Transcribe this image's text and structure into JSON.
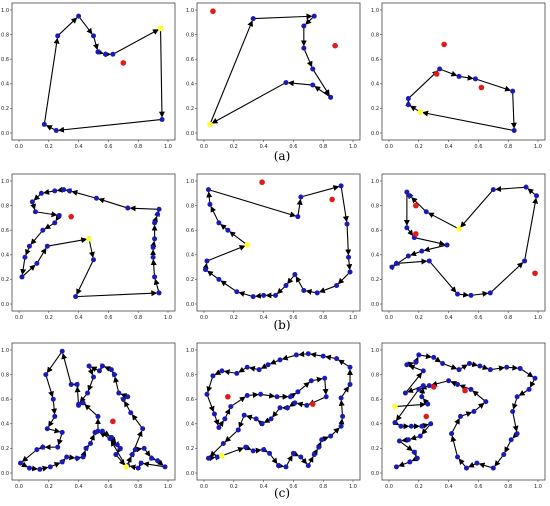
{
  "row_labels": [
    "(a)",
    "(b)",
    "(c)"
  ],
  "colors": {
    "node": "#1a1ab4",
    "start": "#ffff33",
    "outlier": "#e31a1c",
    "edge": "#000000"
  },
  "chart_data": [
    {
      "type": "scatter",
      "row": 0,
      "col": 0,
      "xlim": [
        0,
        1
      ],
      "ylim": [
        0,
        1
      ],
      "xticks": [
        "0.0",
        "0.2",
        "0.4",
        "0.6",
        "0.8",
        "1.0"
      ],
      "yticks": [
        "0.0",
        "0.2",
        "0.4",
        "0.6",
        "0.8",
        "1.0"
      ],
      "route": [
        [
          0.95,
          0.85
        ],
        [
          0.96,
          0.11
        ],
        [
          0.25,
          0.02
        ],
        [
          0.17,
          0.07
        ],
        [
          0.26,
          0.79
        ],
        [
          0.4,
          0.95
        ],
        [
          0.5,
          0.79
        ],
        [
          0.53,
          0.66
        ],
        [
          0.58,
          0.64
        ],
        [
          0.63,
          0.64
        ],
        [
          0.95,
          0.85
        ]
      ],
      "start": [
        0.95,
        0.85
      ],
      "outliers": [
        [
          0.7,
          0.57
        ]
      ]
    },
    {
      "type": "scatter",
      "row": 0,
      "col": 1,
      "xlim": [
        0,
        1
      ],
      "ylim": [
        0,
        1
      ],
      "xticks": [
        "0.0",
        "0.2",
        "0.4",
        "0.6",
        "0.8",
        "1.0"
      ],
      "yticks": [
        "0.0",
        "0.2",
        "0.4",
        "0.6",
        "0.8",
        "1.0"
      ],
      "route": [
        [
          0.04,
          0.07
        ],
        [
          0.33,
          0.93
        ],
        [
          0.74,
          0.95
        ],
        [
          0.67,
          0.87
        ],
        [
          0.67,
          0.69
        ],
        [
          0.73,
          0.52
        ],
        [
          0.85,
          0.29
        ],
        [
          0.73,
          0.39
        ],
        [
          0.55,
          0.41
        ],
        [
          0.04,
          0.07
        ]
      ],
      "start": [
        0.04,
        0.07
      ],
      "outliers": [
        [
          0.06,
          0.99
        ],
        [
          0.88,
          0.71
        ]
      ]
    },
    {
      "type": "scatter",
      "row": 0,
      "col": 2,
      "xlim": [
        0,
        1
      ],
      "ylim": [
        0,
        1
      ],
      "xticks": [
        "0.0",
        "0.2",
        "0.4",
        "0.6",
        "0.8",
        "1.0"
      ],
      "yticks": [
        "0.0",
        "0.2",
        "0.4",
        "0.6",
        "0.8",
        "1.0"
      ],
      "route": [
        [
          0.21,
          0.17
        ],
        [
          0.13,
          0.23
        ],
        [
          0.13,
          0.28
        ],
        [
          0.34,
          0.52
        ],
        [
          0.47,
          0.46
        ],
        [
          0.58,
          0.44
        ],
        [
          0.83,
          0.34
        ],
        [
          0.84,
          0.02
        ],
        [
          0.21,
          0.17
        ]
      ],
      "start": [
        0.21,
        0.17
      ],
      "outliers": [
        [
          0.37,
          0.72
        ],
        [
          0.32,
          0.48
        ],
        [
          0.62,
          0.37
        ]
      ]
    },
    {
      "type": "scatter",
      "row": 1,
      "col": 0,
      "xlim": [
        0,
        1
      ],
      "ylim": [
        0,
        1
      ],
      "xticks": [
        "0.0",
        "0.2",
        "0.4",
        "0.6",
        "0.8",
        "1.0"
      ],
      "yticks": [
        "0.0",
        "0.2",
        "0.4",
        "0.6",
        "0.8",
        "1.0"
      ],
      "route": [
        [
          0.47,
          0.53
        ],
        [
          0.5,
          0.36
        ],
        [
          0.38,
          0.06
        ],
        [
          0.94,
          0.09
        ],
        [
          0.91,
          0.22
        ],
        [
          0.9,
          0.38
        ],
        [
          0.9,
          0.46
        ],
        [
          0.91,
          0.53
        ],
        [
          0.91,
          0.66
        ],
        [
          0.93,
          0.73
        ],
        [
          0.94,
          0.77
        ],
        [
          0.73,
          0.78
        ],
        [
          0.52,
          0.86
        ],
        [
          0.34,
          0.92
        ],
        [
          0.3,
          0.93
        ],
        [
          0.24,
          0.92
        ],
        [
          0.15,
          0.9
        ],
        [
          0.09,
          0.83
        ],
        [
          0.11,
          0.75
        ],
        [
          0.27,
          0.72
        ],
        [
          0.24,
          0.66
        ],
        [
          0.16,
          0.6
        ],
        [
          0.07,
          0.47
        ],
        [
          0.04,
          0.38
        ],
        [
          0.02,
          0.22
        ],
        [
          0.12,
          0.33
        ],
        [
          0.19,
          0.47
        ],
        [
          0.47,
          0.53
        ]
      ],
      "start": [
        0.47,
        0.53
      ],
      "outliers": [
        [
          0.35,
          0.71
        ]
      ]
    },
    {
      "type": "scatter",
      "row": 1,
      "col": 1,
      "xlim": [
        0,
        1
      ],
      "ylim": [
        0,
        1
      ],
      "xticks": [
        "0.0",
        "0.2",
        "0.4",
        "0.6",
        "0.8",
        "1.0"
      ],
      "yticks": [
        "0.0",
        "0.2",
        "0.4",
        "0.6",
        "0.8",
        "1.0"
      ],
      "route": [
        [
          0.29,
          0.48
        ],
        [
          0.16,
          0.6
        ],
        [
          0.1,
          0.66
        ],
        [
          0.04,
          0.81
        ],
        [
          0.03,
          0.93
        ],
        [
          0.63,
          0.71
        ],
        [
          0.65,
          0.87
        ],
        [
          0.92,
          0.96
        ],
        [
          0.96,
          0.65
        ],
        [
          0.97,
          0.38
        ],
        [
          0.98,
          0.26
        ],
        [
          0.89,
          0.15
        ],
        [
          0.76,
          0.09
        ],
        [
          0.67,
          0.11
        ],
        [
          0.61,
          0.24
        ],
        [
          0.55,
          0.15
        ],
        [
          0.48,
          0.07
        ],
        [
          0.4,
          0.07
        ],
        [
          0.33,
          0.06
        ],
        [
          0.22,
          0.1
        ],
        [
          0.1,
          0.2
        ],
        [
          0.01,
          0.28
        ],
        [
          0.02,
          0.35
        ],
        [
          0.29,
          0.48
        ]
      ],
      "start": [
        0.29,
        0.48
      ],
      "outliers": [
        [
          0.39,
          0.99
        ],
        [
          0.86,
          0.85
        ]
      ]
    },
    {
      "type": "scatter",
      "row": 1,
      "col": 2,
      "xlim": [
        0,
        1
      ],
      "ylim": [
        0,
        1
      ],
      "xticks": [
        "0.0",
        "0.2",
        "0.4",
        "0.6",
        "0.8",
        "1.0"
      ],
      "yticks": [
        "0.0",
        "0.2",
        "0.4",
        "0.6",
        "0.8",
        "1.0"
      ],
      "route": [
        [
          0.47,
          0.61
        ],
        [
          0.25,
          0.75
        ],
        [
          0.14,
          0.88
        ],
        [
          0.12,
          0.91
        ],
        [
          0.12,
          0.62
        ],
        [
          0.17,
          0.54
        ],
        [
          0.39,
          0.48
        ],
        [
          0.22,
          0.43
        ],
        [
          0.13,
          0.39
        ],
        [
          0.02,
          0.3
        ],
        [
          0.05,
          0.33
        ],
        [
          0.27,
          0.35
        ],
        [
          0.46,
          0.08
        ],
        [
          0.55,
          0.07
        ],
        [
          0.68,
          0.09
        ],
        [
          0.91,
          0.35
        ],
        [
          0.99,
          0.88
        ],
        [
          0.92,
          0.95
        ],
        [
          0.7,
          0.93
        ],
        [
          0.47,
          0.61
        ]
      ],
      "start": [
        0.47,
        0.61
      ],
      "outliers": [
        [
          0.18,
          0.8
        ],
        [
          0.18,
          0.57
        ],
        [
          0.98,
          0.25
        ]
      ]
    },
    {
      "type": "scatter",
      "row": 2,
      "col": 0,
      "xlim": [
        0,
        1
      ],
      "ylim": [
        0,
        1
      ],
      "xticks": [
        "0.0",
        "0.2",
        "0.4",
        "0.6",
        "0.8",
        "1.0"
      ],
      "yticks": [
        "0.0",
        "0.2",
        "0.4",
        "0.6",
        "0.8",
        "1.0"
      ],
      "route": [
        [
          0.72,
          0.05
        ],
        [
          0.61,
          0.28
        ],
        [
          0.53,
          0.34
        ],
        [
          0.53,
          0.46
        ],
        [
          0.43,
          0.57
        ],
        [
          0.4,
          0.55
        ],
        [
          0.39,
          0.72
        ],
        [
          0.35,
          0.72
        ],
        [
          0.29,
          0.99
        ],
        [
          0.18,
          0.8
        ],
        [
          0.23,
          0.6
        ],
        [
          0.24,
          0.46
        ],
        [
          0.19,
          0.36
        ],
        [
          0.29,
          0.33
        ],
        [
          0.26,
          0.21
        ],
        [
          0.16,
          0.21
        ],
        [
          0.12,
          0.19
        ],
        [
          0.01,
          0.08
        ],
        [
          0.07,
          0.04
        ],
        [
          0.14,
          0.03
        ],
        [
          0.21,
          0.05
        ],
        [
          0.29,
          0.09
        ],
        [
          0.32,
          0.13
        ],
        [
          0.39,
          0.12
        ],
        [
          0.43,
          0.13
        ],
        [
          0.45,
          0.2
        ],
        [
          0.48,
          0.24
        ],
        [
          0.51,
          0.33
        ],
        [
          0.56,
          0.34
        ],
        [
          0.62,
          0.29
        ],
        [
          0.66,
          0.23
        ],
        [
          0.68,
          0.2
        ],
        [
          0.65,
          0.15
        ],
        [
          0.72,
          0.05
        ],
        [
          0.76,
          0.15
        ],
        [
          0.78,
          0.19
        ],
        [
          0.84,
          0.2
        ],
        [
          0.89,
          0.12
        ],
        [
          0.93,
          0.1
        ],
        [
          0.98,
          0.05
        ],
        [
          0.82,
          0.08
        ],
        [
          0.8,
          0.04
        ],
        [
          0.73,
          0.06
        ],
        [
          0.83,
          0.36
        ],
        [
          0.75,
          0.49
        ],
        [
          0.7,
          0.6
        ],
        [
          0.73,
          0.62
        ],
        [
          0.67,
          0.65
        ],
        [
          0.64,
          0.8
        ],
        [
          0.62,
          0.84
        ],
        [
          0.56,
          0.87
        ],
        [
          0.54,
          0.83
        ],
        [
          0.47,
          0.87
        ],
        [
          0.5,
          0.78
        ],
        [
          0.46,
          0.65
        ],
        [
          0.4,
          0.56
        ]
      ],
      "start": [
        0.72,
        0.05
      ],
      "outliers": [
        [
          0.63,
          0.42
        ]
      ]
    },
    {
      "type": "scatter",
      "row": 2,
      "col": 1,
      "xlim": [
        0,
        1
      ],
      "ylim": [
        0,
        1
      ],
      "xticks": [
        "0.0",
        "0.2",
        "0.4",
        "0.6",
        "0.8",
        "1.0"
      ],
      "yticks": [
        "0.0",
        "0.2",
        "0.4",
        "0.6",
        "0.8",
        "1.0"
      ],
      "route": [
        [
          0.12,
          0.14
        ],
        [
          0.28,
          0.21
        ],
        [
          0.33,
          0.18
        ],
        [
          0.4,
          0.19
        ],
        [
          0.44,
          0.16
        ],
        [
          0.5,
          0.06
        ],
        [
          0.55,
          0.05
        ],
        [
          0.6,
          0.16
        ],
        [
          0.65,
          0.13
        ],
        [
          0.7,
          0.06
        ],
        [
          0.74,
          0.15
        ],
        [
          0.77,
          0.21
        ],
        [
          0.79,
          0.27
        ],
        [
          0.85,
          0.3
        ],
        [
          0.92,
          0.38
        ],
        [
          0.93,
          0.46
        ],
        [
          0.92,
          0.61
        ],
        [
          0.98,
          0.72
        ],
        [
          0.98,
          0.86
        ],
        [
          0.89,
          0.93
        ],
        [
          0.8,
          0.95
        ],
        [
          0.7,
          0.97
        ],
        [
          0.62,
          0.96
        ],
        [
          0.51,
          0.92
        ],
        [
          0.43,
          0.88
        ],
        [
          0.37,
          0.84
        ],
        [
          0.29,
          0.86
        ],
        [
          0.22,
          0.81
        ],
        [
          0.12,
          0.83
        ],
        [
          0.06,
          0.79
        ],
        [
          0.02,
          0.64
        ],
        [
          0.07,
          0.48
        ],
        [
          0.1,
          0.37
        ],
        [
          0.14,
          0.44
        ],
        [
          0.18,
          0.54
        ],
        [
          0.29,
          0.63
        ],
        [
          0.38,
          0.64
        ],
        [
          0.49,
          0.62
        ],
        [
          0.58,
          0.62
        ],
        [
          0.63,
          0.66
        ],
        [
          0.72,
          0.75
        ],
        [
          0.81,
          0.77
        ],
        [
          0.82,
          0.62
        ],
        [
          0.69,
          0.55
        ],
        [
          0.61,
          0.57
        ],
        [
          0.56,
          0.53
        ],
        [
          0.51,
          0.53
        ],
        [
          0.45,
          0.44
        ],
        [
          0.39,
          0.4
        ],
        [
          0.35,
          0.44
        ],
        [
          0.27,
          0.47
        ],
        [
          0.23,
          0.35
        ],
        [
          0.13,
          0.24
        ],
        [
          0.03,
          0.12
        ],
        [
          0.09,
          0.13
        ],
        [
          0.12,
          0.14
        ]
      ],
      "start": [
        0.12,
        0.14
      ],
      "outliers": [
        [
          0.16,
          0.62
        ],
        [
          0.73,
          0.56
        ]
      ]
    },
    {
      "type": "scatter",
      "row": 2,
      "col": 2,
      "xlim": [
        0,
        1
      ],
      "ylim": [
        0,
        1
      ],
      "xticks": [
        "0.0",
        "0.2",
        "0.4",
        "0.6",
        "0.8",
        "1.0"
      ],
      "yticks": [
        "0.0",
        "0.2",
        "0.4",
        "0.6",
        "0.8",
        "1.0"
      ],
      "route": [
        [
          0.04,
          0.54
        ],
        [
          0.26,
          0.56
        ],
        [
          0.22,
          0.62
        ],
        [
          0.23,
          0.71
        ],
        [
          0.11,
          0.65
        ],
        [
          0.23,
          0.83
        ],
        [
          0.12,
          0.88
        ],
        [
          0.18,
          0.9
        ],
        [
          0.2,
          0.96
        ],
        [
          0.3,
          0.94
        ],
        [
          0.36,
          0.89
        ],
        [
          0.47,
          0.84
        ],
        [
          0.54,
          0.89
        ],
        [
          0.61,
          0.87
        ],
        [
          0.68,
          0.84
        ],
        [
          0.79,
          0.86
        ],
        [
          0.88,
          0.85
        ],
        [
          0.98,
          0.77
        ],
        [
          0.94,
          0.68
        ],
        [
          0.86,
          0.62
        ],
        [
          0.83,
          0.5
        ],
        [
          0.86,
          0.32
        ],
        [
          0.82,
          0.27
        ],
        [
          0.77,
          0.15
        ],
        [
          0.7,
          0.04
        ],
        [
          0.59,
          0.08
        ],
        [
          0.52,
          0.04
        ],
        [
          0.46,
          0.13
        ],
        [
          0.42,
          0.32
        ],
        [
          0.48,
          0.46
        ],
        [
          0.57,
          0.5
        ],
        [
          0.65,
          0.58
        ],
        [
          0.55,
          0.68
        ],
        [
          0.46,
          0.72
        ],
        [
          0.4,
          0.75
        ],
        [
          0.27,
          0.71
        ],
        [
          0.2,
          0.68
        ],
        [
          0.04,
          0.41
        ],
        [
          0.08,
          0.38
        ],
        [
          0.15,
          0.38
        ],
        [
          0.22,
          0.38
        ],
        [
          0.28,
          0.4
        ],
        [
          0.21,
          0.3
        ],
        [
          0.13,
          0.27
        ],
        [
          0.07,
          0.26
        ],
        [
          0.17,
          0.17
        ],
        [
          0.19,
          0.12
        ],
        [
          0.14,
          0.09
        ],
        [
          0.05,
          0.05
        ]
      ],
      "start": [
        0.04,
        0.54
      ],
      "outliers": [
        [
          0.3,
          0.7
        ],
        [
          0.51,
          0.67
        ],
        [
          0.25,
          0.46
        ]
      ]
    }
  ]
}
